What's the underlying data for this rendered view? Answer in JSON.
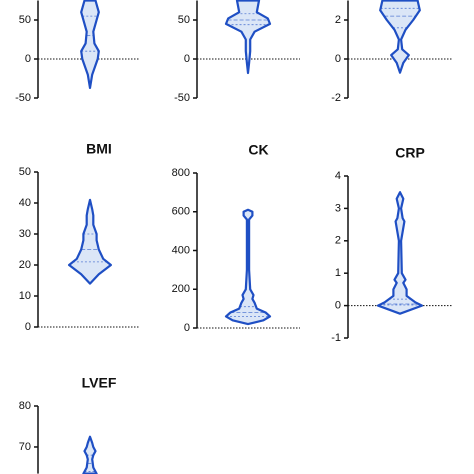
{
  "chart_data": [
    {
      "type": "violin",
      "ylim": [
        -50,
        75
      ],
      "yticks": [
        -50,
        0,
        50
      ],
      "color": "#1f4fc4",
      "fill": "#dbe6f7",
      "profile": {
        "y": [
          -37,
          -20,
          0,
          10,
          20,
          35,
          50,
          60,
          75
        ],
        "density": [
          0,
          0.1,
          0.35,
          0.4,
          0.2,
          0.15,
          0.3,
          0.4,
          0.25
        ]
      },
      "quartiles": [
        10,
        30,
        55
      ]
    },
    {
      "type": "violin",
      "ylim": [
        -50,
        75
      ],
      "yticks": [
        -50,
        0,
        50
      ],
      "color": "#1f4fc4",
      "fill": "#dbe6f7",
      "profile": {
        "y": [
          -18,
          -5,
          10,
          25,
          35,
          45,
          52,
          60,
          75
        ],
        "density": [
          0,
          0.05,
          0.1,
          0.1,
          0.3,
          1.0,
          0.9,
          0.4,
          0.5
        ]
      },
      "quartiles": [
        44,
        50,
        58
      ]
    },
    {
      "type": "violin",
      "ylim": [
        -2,
        3
      ],
      "yticks": [
        -2,
        0,
        2
      ],
      "color": "#1f4fc4",
      "fill": "#dbe6f7",
      "profile": {
        "y": [
          -0.7,
          -0.2,
          0.2,
          0.5,
          1.0,
          1.5,
          2.0,
          2.5,
          3.0
        ],
        "density": [
          0,
          0.15,
          0.4,
          0.1,
          0.05,
          0.25,
          0.6,
          0.9,
          0.8
        ]
      },
      "quartiles": [
        1.6,
        2.2,
        2.6
      ]
    },
    {
      "type": "violin",
      "title": "BMI",
      "ylim": [
        0,
        50
      ],
      "yticks": [
        0,
        10,
        20,
        30,
        40,
        50
      ],
      "color": "#1f4fc4",
      "fill": "#dbe6f7",
      "profile": {
        "y": [
          14,
          17,
          20,
          22,
          25,
          28,
          30,
          33,
          36,
          38,
          41
        ],
        "density": [
          0,
          0.4,
          0.95,
          0.6,
          0.4,
          0.3,
          0.3,
          0.15,
          0.15,
          0.1,
          0
        ]
      },
      "quartiles": [
        21,
        25,
        30
      ]
    },
    {
      "type": "violin",
      "title": "CK",
      "ylim": [
        0,
        800
      ],
      "yticks": [
        0,
        200,
        400,
        600,
        800
      ],
      "color": "#1f4fc4",
      "fill": "#dbe6f7",
      "profile": {
        "y": [
          20,
          40,
          60,
          80,
          100,
          130,
          150,
          170,
          200,
          300,
          450,
          560,
          580,
          600,
          610
        ],
        "density": [
          0,
          0.7,
          1.0,
          0.8,
          0.4,
          0.3,
          0.2,
          0.25,
          0.1,
          0.05,
          0.05,
          0.05,
          0.2,
          0.2,
          0
        ]
      },
      "quartiles": [
        60,
        80,
        110
      ]
    },
    {
      "type": "violin",
      "title": "CRP",
      "ylim": [
        -1,
        4
      ],
      "yticks": [
        -1,
        0,
        1,
        2,
        3,
        4
      ],
      "color": "#1f4fc4",
      "fill": "#dbe6f7",
      "profile": {
        "y": [
          -0.25,
          0,
          0.1,
          0.3,
          0.5,
          0.7,
          0.8,
          1,
          2,
          2.6,
          2.7,
          3.0,
          3.3,
          3.5
        ],
        "density": [
          0,
          1.0,
          0.7,
          0.3,
          0.3,
          0.15,
          0.25,
          0.08,
          0.05,
          0.2,
          0.12,
          0.05,
          0.15,
          0
        ]
      },
      "quartiles": [
        0.02,
        0.05,
        0.2
      ]
    },
    {
      "type": "violin",
      "title": "LVEF",
      "ylim": [
        63.5,
        80
      ],
      "yticks": [
        70,
        80
      ],
      "color": "#1f4fc4",
      "fill": "#dbe6f7",
      "profile": {
        "y": [
          63.5,
          65,
          67,
          68,
          69,
          70,
          71,
          72.5
        ],
        "density": [
          0.3,
          0.15,
          0.1,
          0.15,
          0.25,
          0.15,
          0.1,
          0
        ]
      },
      "quartiles": [
        64,
        66,
        68
      ]
    }
  ]
}
